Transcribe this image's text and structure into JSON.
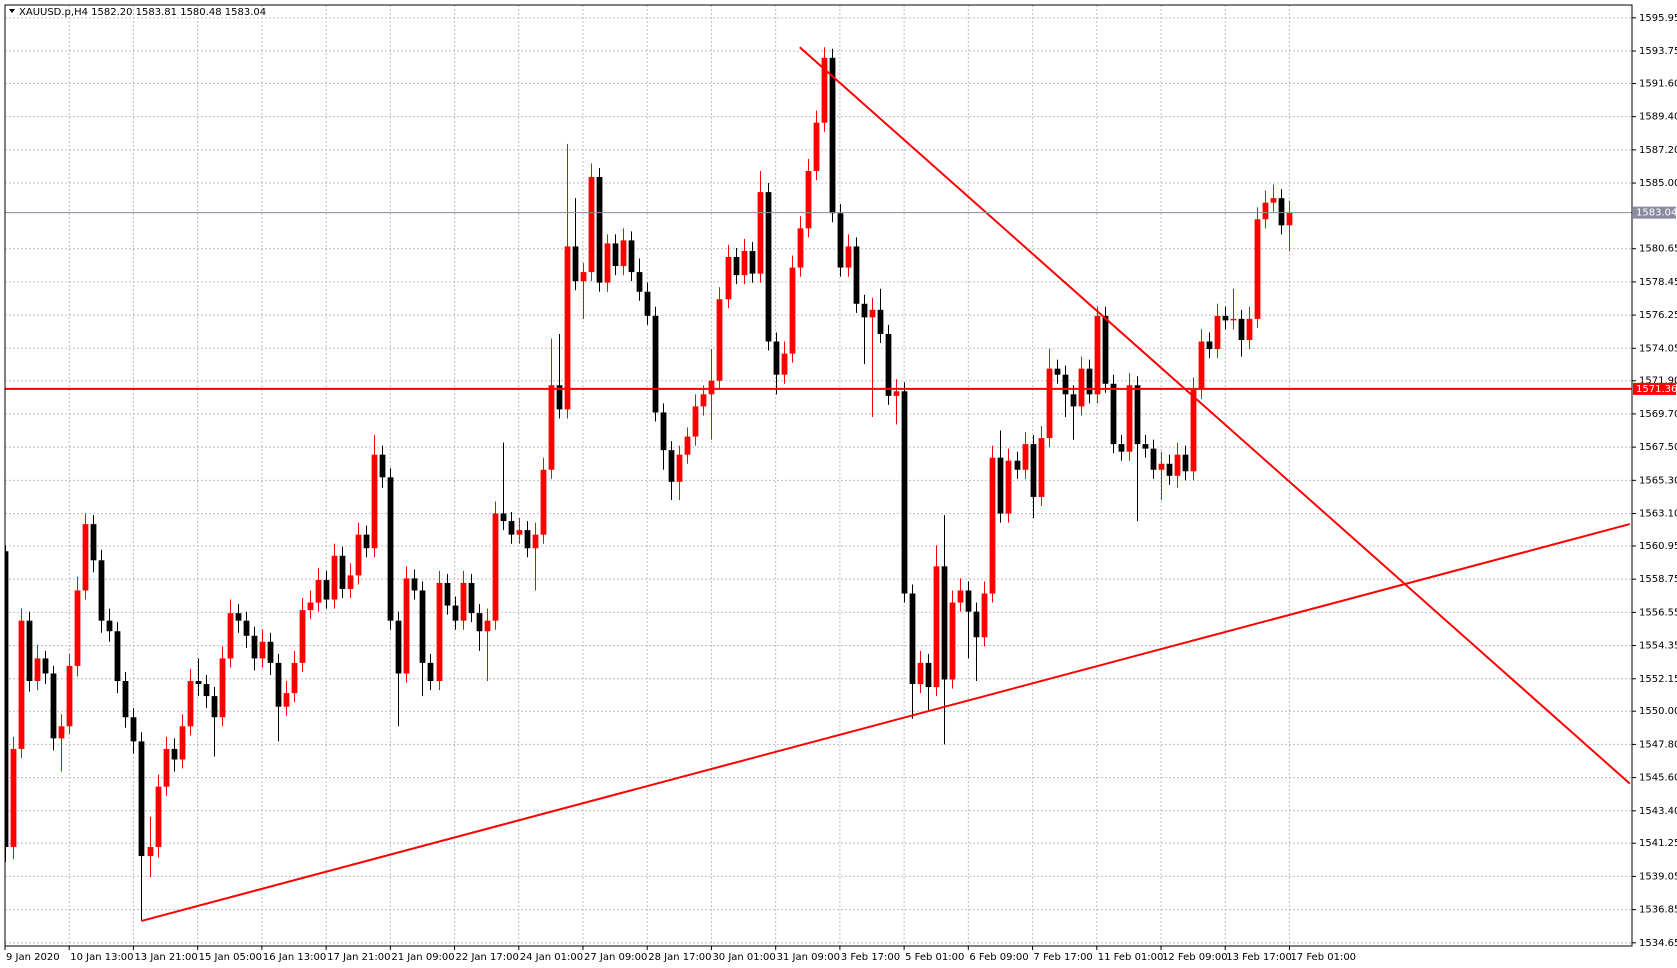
{
  "chart_data": {
    "type": "candlestick",
    "title": "XAUUSD.p,H4 1582.20 1583.81 1580.48 1583.04",
    "up_color": "#ff0000",
    "down_color": "#000000",
    "grid": true,
    "ylim": [
      1534.44,
      1596.8
    ],
    "yticks": [
      1595.95,
      1593.75,
      {
        "value": 1591.6,
        "label": "1591.60"
      },
      {
        "value": 1589.4,
        "label": "1589.40"
      },
      {
        "value": 1587.2,
        "label": "1587.20"
      },
      {
        "value": 1585,
        "label": "1585.00"
      },
      1580.65,
      1578.45,
      1576.25,
      1574.05,
      {
        "value": 1571.9,
        "label": "1571.90"
      },
      {
        "value": 1569.7,
        "label": "1569.70"
      },
      {
        "value": 1567.5,
        "label": "1567.50"
      },
      {
        "value": 1565.3,
        "label": "1565.30"
      },
      {
        "value": 1563.1,
        "label": "1563.10"
      },
      1560.95,
      1558.75,
      1556.55,
      1554.35,
      1552.15,
      {
        "value": 1550,
        "label": "1550.00"
      },
      {
        "value": 1547.8,
        "label": "1547.80"
      },
      {
        "value": 1545.6,
        "label": "1545.60"
      },
      {
        "value": 1543.4,
        "label": "1543.40"
      },
      1541.25,
      1539.05,
      1536.85,
      1534.65
    ],
    "xlim": [
      0,
      202.67
    ],
    "xticks": [
      {
        "value": 0,
        "label": "9 Jan 2020"
      },
      {
        "value": 8,
        "label": "10 Jan 13:00"
      },
      {
        "value": 16,
        "label": "13 Jan 21:00"
      },
      {
        "value": 24,
        "label": "15 Jan 05:00"
      },
      {
        "value": 32,
        "label": "16 Jan 13:00"
      },
      {
        "value": 40,
        "label": "17 Jan 21:00"
      },
      {
        "value": 48,
        "label": "21 Jan 09:00"
      },
      {
        "value": 56,
        "label": "22 Jan 17:00"
      },
      {
        "value": 64,
        "label": "24 Jan 01:00"
      },
      {
        "value": 72,
        "label": "27 Jan 09:00"
      },
      {
        "value": 80,
        "label": "28 Jan 17:00"
      },
      {
        "value": 88,
        "label": "30 Jan 01:00"
      },
      {
        "value": 96,
        "label": "31 Jan 09:00"
      },
      {
        "value": 104,
        "label": "3 Feb 17:00"
      },
      {
        "value": 112,
        "label": "5 Feb 01:00"
      },
      {
        "value": 120,
        "label": "6 Feb 09:00"
      },
      {
        "value": 128,
        "label": "7 Feb 17:00"
      },
      {
        "value": 136,
        "label": "11 Feb 01:00"
      },
      {
        "value": 144,
        "label": "12 Feb 09:00"
      },
      {
        "value": 152,
        "label": "13 Feb 17:00"
      },
      {
        "value": 160,
        "label": "17 Feb 01:00"
      }
    ],
    "hlines": [
      {
        "value": 1571.36,
        "color": "#ff0000"
      },
      {
        "value": 1583.04,
        "color": "#8a8aa0"
      }
    ],
    "trendlines": [
      {
        "x": [
          17,
          202.4
        ],
        "y": [
          1536.1,
          1562.4
        ],
        "color": "#ff0000"
      },
      {
        "x": [
          99,
          202.4
        ],
        "y": [
          1594.0,
          1545.2
        ],
        "color": "#ff0000"
      }
    ],
    "ohlc": [
      [
        1560.6,
        1561.0,
        1540.0,
        1541.0
      ],
      [
        1541.0,
        1548.3,
        1540.2,
        1547.5
      ],
      [
        1547.5,
        1556.8,
        1546.9,
        1556.0
      ],
      [
        1556.0,
        1556.6,
        1551.3,
        1552.0
      ],
      [
        1552.0,
        1554.4,
        1551.4,
        1553.5
      ],
      [
        1553.5,
        1554.0,
        1551.8,
        1552.5
      ],
      [
        1552.5,
        1553.0,
        1547.4,
        1548.2
      ],
      [
        1548.2,
        1549.8,
        1546.0,
        1549.0
      ],
      [
        1549.0,
        1553.8,
        1548.5,
        1553.0
      ],
      [
        1553.0,
        1558.9,
        1552.3,
        1558.0
      ],
      [
        1558.0,
        1563.1,
        1557.4,
        1562.4
      ],
      [
        1562.4,
        1563.0,
        1559.2,
        1560.0
      ],
      [
        1560.0,
        1560.7,
        1555.2,
        1556.0
      ],
      [
        1556.0,
        1556.8,
        1554.6,
        1555.3
      ],
      [
        1555.3,
        1555.9,
        1551.2,
        1552.0
      ],
      [
        1552.0,
        1552.6,
        1548.9,
        1549.6
      ],
      [
        1549.6,
        1550.2,
        1547.2,
        1548.0
      ],
      [
        1548.0,
        1548.6,
        1536.1,
        1540.4
      ],
      [
        1540.4,
        1543.0,
        1539.0,
        1541.0
      ],
      [
        1541.0,
        1545.8,
        1540.3,
        1545.0
      ],
      [
        1545.0,
        1548.3,
        1544.4,
        1547.5
      ],
      [
        1547.5,
        1548.2,
        1546.0,
        1546.8
      ],
      [
        1546.8,
        1549.8,
        1546.2,
        1549.0
      ],
      [
        1549.0,
        1552.8,
        1548.4,
        1552.0
      ],
      [
        1552.0,
        1553.5,
        1551.0,
        1551.8
      ],
      [
        1551.8,
        1552.4,
        1550.2,
        1551.0
      ],
      [
        1551.0,
        1551.6,
        1547.0,
        1549.6
      ],
      [
        1549.6,
        1554.3,
        1549.0,
        1553.5
      ],
      [
        1553.5,
        1557.4,
        1552.9,
        1556.5
      ],
      [
        1556.5,
        1557.1,
        1555.2,
        1556.0
      ],
      [
        1556.0,
        1556.6,
        1554.2,
        1555.0
      ],
      [
        1555.0,
        1555.6,
        1552.7,
        1553.5
      ],
      [
        1553.5,
        1555.4,
        1552.9,
        1554.6
      ],
      [
        1554.6,
        1555.2,
        1552.4,
        1553.2
      ],
      [
        1553.2,
        1553.8,
        1548.0,
        1550.3
      ],
      [
        1550.3,
        1552.0,
        1549.7,
        1551.2
      ],
      [
        1551.2,
        1554.0,
        1550.6,
        1553.2
      ],
      [
        1553.2,
        1557.5,
        1552.6,
        1556.7
      ],
      [
        1556.7,
        1558.0,
        1556.1,
        1557.2
      ],
      [
        1557.2,
        1559.5,
        1556.6,
        1558.7
      ],
      [
        1558.7,
        1559.3,
        1556.8,
        1557.4
      ],
      [
        1557.4,
        1561.1,
        1556.8,
        1560.3
      ],
      [
        1560.3,
        1560.9,
        1557.5,
        1558.1
      ],
      [
        1558.1,
        1559.8,
        1557.5,
        1559.0
      ],
      [
        1559.0,
        1562.5,
        1558.4,
        1561.7
      ],
      [
        1561.7,
        1562.3,
        1560.2,
        1560.8
      ],
      [
        1560.8,
        1568.3,
        1560.2,
        1567.0
      ],
      [
        1567.0,
        1567.6,
        1564.8,
        1565.5
      ],
      [
        1565.5,
        1566.1,
        1555.4,
        1556.0
      ],
      [
        1556.0,
        1556.6,
        1549.0,
        1552.5
      ],
      [
        1552.5,
        1559.6,
        1551.9,
        1558.8
      ],
      [
        1558.8,
        1559.4,
        1557.4,
        1558.0
      ],
      [
        1558.0,
        1558.6,
        1551.0,
        1553.2
      ],
      [
        1553.2,
        1553.8,
        1551.4,
        1552.0
      ],
      [
        1552.0,
        1559.3,
        1551.4,
        1558.5
      ],
      [
        1558.5,
        1559.1,
        1556.4,
        1557.0
      ],
      [
        1557.0,
        1557.6,
        1555.4,
        1556.0
      ],
      [
        1556.0,
        1559.3,
        1555.4,
        1558.5
      ],
      [
        1558.5,
        1559.1,
        1555.9,
        1556.5
      ],
      [
        1556.5,
        1557.1,
        1554.0,
        1555.3
      ],
      [
        1555.3,
        1556.8,
        1552.0,
        1556.0
      ],
      [
        1556.0,
        1563.9,
        1555.4,
        1563.1
      ],
      [
        1563.1,
        1567.8,
        1562.0,
        1562.6
      ],
      [
        1562.6,
        1563.2,
        1561.1,
        1561.7
      ],
      [
        1561.7,
        1562.8,
        1561.1,
        1562.0
      ],
      [
        1562.0,
        1562.6,
        1560.2,
        1560.8
      ],
      [
        1560.8,
        1562.5,
        1558.0,
        1561.7
      ],
      [
        1561.7,
        1566.8,
        1561.1,
        1566.0
      ],
      [
        1566.0,
        1574.7,
        1565.4,
        1571.6
      ],
      [
        1571.6,
        1575.0,
        1569.4,
        1570.0
      ],
      [
        1570.0,
        1587.6,
        1569.4,
        1580.8
      ],
      [
        1580.8,
        1584.0,
        1577.9,
        1578.5
      ],
      [
        1578.5,
        1579.7,
        1576.0,
        1579.1
      ],
      [
        1579.1,
        1586.3,
        1578.5,
        1585.4
      ],
      [
        1585.4,
        1586.0,
        1577.8,
        1578.4
      ],
      [
        1578.4,
        1581.6,
        1577.8,
        1581.0
      ],
      [
        1581.0,
        1581.6,
        1578.9,
        1579.5
      ],
      [
        1579.5,
        1582.0,
        1578.9,
        1581.2
      ],
      [
        1581.2,
        1581.8,
        1578.5,
        1579.1
      ],
      [
        1579.1,
        1580.0,
        1577.2,
        1577.8
      ],
      [
        1577.8,
        1578.4,
        1575.6,
        1576.2
      ],
      [
        1576.2,
        1576.8,
        1569.2,
        1569.8
      ],
      [
        1569.8,
        1570.4,
        1566.0,
        1567.3
      ],
      [
        1567.3,
        1567.9,
        1564.0,
        1565.2
      ],
      [
        1565.2,
        1567.6,
        1564.0,
        1567.0
      ],
      [
        1567.0,
        1568.8,
        1566.4,
        1568.2
      ],
      [
        1568.2,
        1571.0,
        1567.6,
        1570.2
      ],
      [
        1570.2,
        1571.6,
        1569.6,
        1571.0
      ],
      [
        1571.0,
        1574.0,
        1568.0,
        1571.9
      ],
      [
        1571.9,
        1578.1,
        1571.3,
        1577.3
      ],
      [
        1577.3,
        1580.9,
        1576.7,
        1580.1
      ],
      [
        1580.1,
        1580.7,
        1578.3,
        1578.9
      ],
      [
        1578.9,
        1581.3,
        1578.3,
        1580.5
      ],
      [
        1580.5,
        1581.1,
        1578.4,
        1579.0
      ],
      [
        1579.0,
        1585.8,
        1578.4,
        1584.4
      ],
      [
        1584.4,
        1585.0,
        1573.9,
        1574.5
      ],
      [
        1574.5,
        1575.1,
        1571.0,
        1572.3
      ],
      [
        1572.3,
        1574.5,
        1571.7,
        1573.7
      ],
      [
        1573.7,
        1580.2,
        1573.1,
        1579.4
      ],
      [
        1579.4,
        1582.8,
        1578.8,
        1582.0
      ],
      [
        1582.0,
        1586.6,
        1581.4,
        1585.8
      ],
      [
        1585.8,
        1589.8,
        1585.2,
        1589.0
      ],
      [
        1589.0,
        1594.0,
        1588.4,
        1593.3
      ],
      [
        1593.3,
        1593.9,
        1582.4,
        1583.0
      ],
      [
        1583.0,
        1583.6,
        1578.8,
        1579.4
      ],
      [
        1579.4,
        1581.6,
        1578.8,
        1580.8
      ],
      [
        1580.8,
        1581.4,
        1576.4,
        1577.0
      ],
      [
        1577.0,
        1577.6,
        1573.0,
        1576.1
      ],
      [
        1576.1,
        1577.4,
        1569.5,
        1576.6
      ],
      [
        1576.6,
        1578.0,
        1574.4,
        1575.0
      ],
      [
        1575.0,
        1575.6,
        1570.3,
        1570.9
      ],
      [
        1570.9,
        1572.0,
        1569.0,
        1571.2
      ],
      [
        1571.2,
        1571.8,
        1557.2,
        1557.8
      ],
      [
        1557.8,
        1558.4,
        1549.5,
        1551.8
      ],
      [
        1551.8,
        1554.0,
        1551.2,
        1553.2
      ],
      [
        1553.2,
        1553.8,
        1550.0,
        1551.6
      ],
      [
        1551.6,
        1561.0,
        1551.0,
        1559.6
      ],
      [
        1559.6,
        1563.0,
        1547.8,
        1552.1
      ],
      [
        1552.1,
        1558.0,
        1551.5,
        1557.2
      ],
      [
        1557.2,
        1558.8,
        1556.6,
        1558.0
      ],
      [
        1558.0,
        1558.6,
        1553.5,
        1556.6
      ],
      [
        1556.6,
        1557.2,
        1552.0,
        1554.9
      ],
      [
        1554.9,
        1558.6,
        1554.3,
        1557.8
      ],
      [
        1557.8,
        1567.6,
        1557.2,
        1566.8
      ],
      [
        1566.8,
        1568.6,
        1562.5,
        1563.1
      ],
      [
        1563.1,
        1567.4,
        1562.5,
        1566.6
      ],
      [
        1566.6,
        1567.2,
        1565.4,
        1566.0
      ],
      [
        1566.0,
        1568.5,
        1565.4,
        1567.7
      ],
      [
        1567.7,
        1568.3,
        1562.8,
        1564.2
      ],
      [
        1564.2,
        1568.9,
        1563.6,
        1568.1
      ],
      [
        1568.1,
        1574.0,
        1567.5,
        1572.7
      ],
      [
        1572.7,
        1573.3,
        1571.7,
        1572.3
      ],
      [
        1572.3,
        1572.9,
        1569.5,
        1571.0
      ],
      [
        1571.0,
        1571.6,
        1568.0,
        1570.2
      ],
      [
        1570.2,
        1573.5,
        1569.6,
        1572.7
      ],
      [
        1572.7,
        1573.3,
        1570.4,
        1571.0
      ],
      [
        1571.0,
        1576.8,
        1570.4,
        1576.2
      ],
      [
        1576.2,
        1576.8,
        1571.1,
        1571.7
      ],
      [
        1571.7,
        1572.3,
        1567.1,
        1567.7
      ],
      [
        1567.7,
        1568.3,
        1566.6,
        1567.2
      ],
      [
        1567.2,
        1572.4,
        1566.6,
        1571.6
      ],
      [
        1571.6,
        1572.2,
        1562.6,
        1567.7
      ],
      [
        1567.7,
        1568.3,
        1566.8,
        1567.4
      ],
      [
        1567.4,
        1568.0,
        1565.4,
        1566.0
      ],
      [
        1566.0,
        1567.2,
        1564.0,
        1566.4
      ],
      [
        1566.4,
        1567.0,
        1565.0,
        1565.6
      ],
      [
        1565.6,
        1567.8,
        1564.8,
        1567.0
      ],
      [
        1567.0,
        1567.6,
        1565.3,
        1565.9
      ],
      [
        1565.9,
        1572.1,
        1565.3,
        1571.3
      ],
      [
        1571.3,
        1575.3,
        1570.7,
        1574.5
      ],
      [
        1574.5,
        1575.1,
        1573.4,
        1574.0
      ],
      [
        1574.0,
        1577.0,
        1573.4,
        1576.2
      ],
      [
        1576.2,
        1576.8,
        1575.3,
        1575.9
      ],
      [
        1575.9,
        1578.0,
        1575.3,
        1576.0
      ],
      [
        1576.0,
        1576.6,
        1573.5,
        1574.6
      ],
      [
        1574.6,
        1576.8,
        1574.0,
        1576.0
      ],
      [
        1576.0,
        1583.4,
        1575.4,
        1582.6
      ],
      [
        1582.6,
        1584.5,
        1582.0,
        1583.7
      ],
      [
        1583.7,
        1584.9,
        1583.1,
        1584.0
      ],
      [
        1584.0,
        1584.6,
        1581.6,
        1582.2
      ],
      [
        1582.2,
        1583.81,
        1580.48,
        1583.04
      ]
    ]
  }
}
